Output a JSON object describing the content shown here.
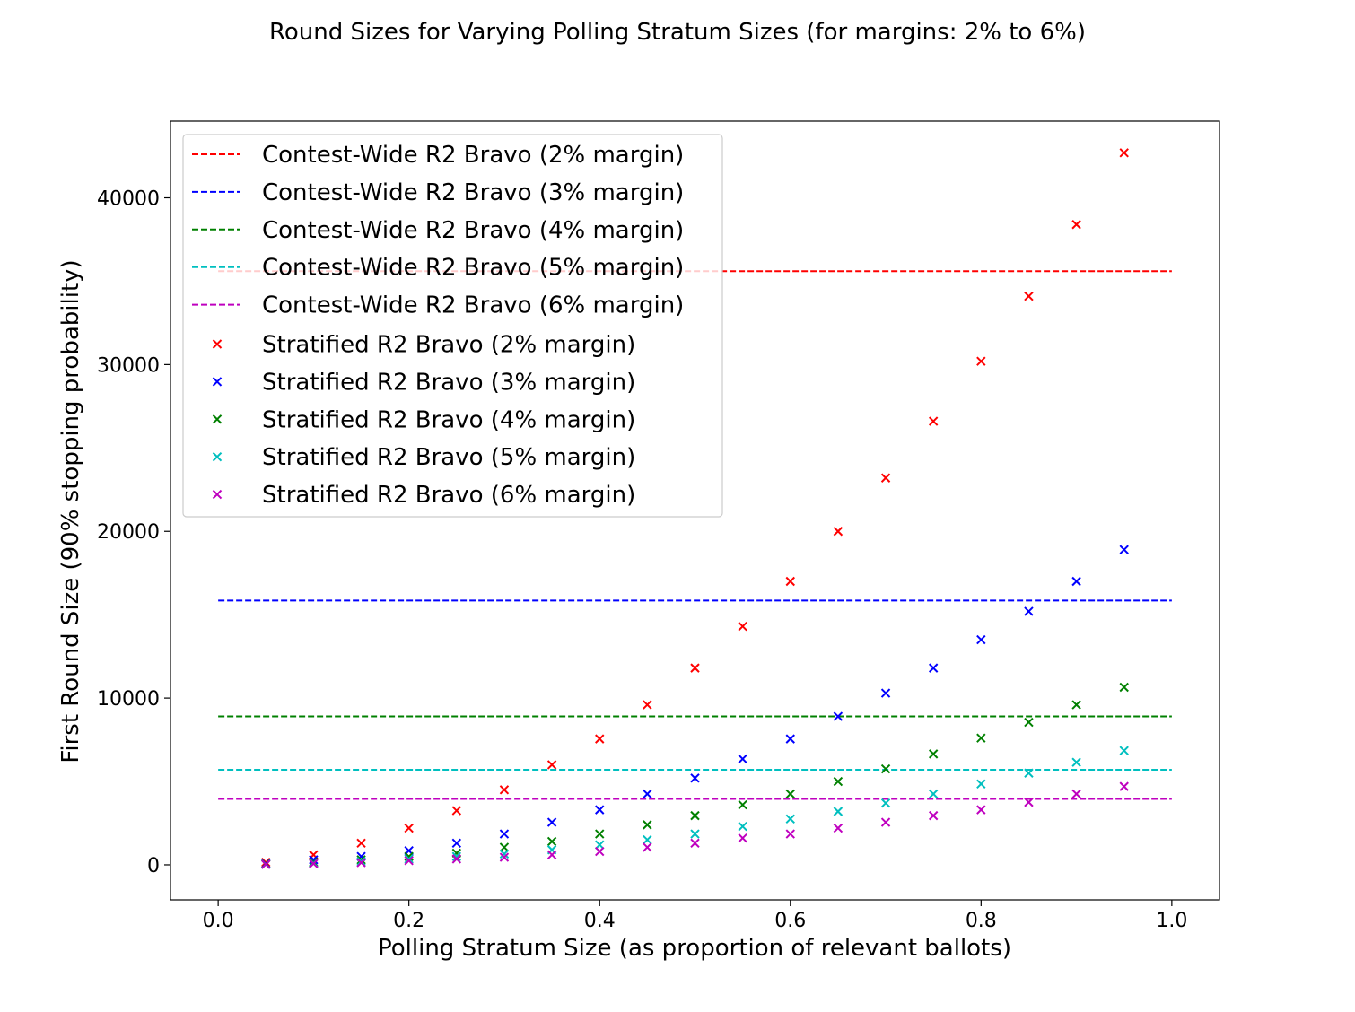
{
  "chart_data": {
    "type": "scatter",
    "title": "Round Sizes for Varying Polling Stratum Sizes (for margins: 2% to 6%)",
    "xlabel": "Polling Stratum Size (as proportion of relevant ballots)",
    "ylabel": "First Round Size (90% stopping probability)",
    "xlim": [
      -0.05,
      1.05
    ],
    "ylim": [
      -2100,
      44600
    ],
    "xticks": [
      0.0,
      0.2,
      0.4,
      0.6,
      0.8,
      1.0
    ],
    "xtick_labels": [
      "0.0",
      "0.2",
      "0.4",
      "0.6",
      "0.8",
      "1.0"
    ],
    "yticks": [
      0,
      10000,
      20000,
      30000,
      40000
    ],
    "ytick_labels": [
      "0",
      "10000",
      "20000",
      "30000",
      "40000"
    ],
    "grid": false,
    "legend_position": "top-left",
    "line_x_range": [
      0.0,
      1.0
    ],
    "lines": [
      {
        "name": "Contest-Wide R2 Bravo (2% margin)",
        "color": "#ff0000",
        "y": 35600
      },
      {
        "name": "Contest-Wide R2 Bravo (3% margin)",
        "color": "#0000ff",
        "y": 15850
      },
      {
        "name": "Contest-Wide R2 Bravo (4% margin)",
        "color": "#008000",
        "y": 8900
      },
      {
        "name": "Contest-Wide R2 Bravo (5% margin)",
        "color": "#00bfbf",
        "y": 5700
      },
      {
        "name": "Contest-Wide R2 Bravo (6% margin)",
        "color": "#bf00bf",
        "y": 3950
      }
    ],
    "x": [
      0.05,
      0.1,
      0.15,
      0.2,
      0.25,
      0.3,
      0.35,
      0.4,
      0.45,
      0.5,
      0.55,
      0.6,
      0.65,
      0.7,
      0.75,
      0.8,
      0.85,
      0.9,
      0.95
    ],
    "series": [
      {
        "name": "Stratified R2 Bravo (2% margin)",
        "color": "#ff0000",
        "values": [
          150,
          600,
          1300,
          2200,
          3250,
          4500,
          6000,
          7550,
          9600,
          11800,
          14300,
          17000,
          20000,
          23200,
          26600,
          30200,
          34100,
          38400,
          42700
        ]
      },
      {
        "name": "Stratified R2 Bravo (3% margin)",
        "color": "#0000ff",
        "values": [
          70,
          300,
          500,
          850,
          1300,
          1850,
          2550,
          3300,
          4250,
          5200,
          6350,
          7550,
          8900,
          10300,
          11800,
          13500,
          15200,
          17000,
          18900
        ]
      },
      {
        "name": "Stratified R2 Bravo (4% margin)",
        "color": "#008000",
        "values": [
          40,
          150,
          300,
          500,
          700,
          1050,
          1400,
          1850,
          2400,
          2950,
          3600,
          4250,
          5000,
          5750,
          6650,
          7600,
          8550,
          9600,
          10650
        ]
      },
      {
        "name": "Stratified R2 Bravo (5% margin)",
        "color": "#00bfbf",
        "values": [
          30,
          100,
          200,
          350,
          500,
          650,
          900,
          1200,
          1500,
          1850,
          2300,
          2750,
          3200,
          3700,
          4250,
          4850,
          5500,
          6150,
          6850
        ]
      },
      {
        "name": "Stratified R2 Bravo (6% margin)",
        "color": "#bf00bf",
        "values": [
          20,
          70,
          130,
          250,
          350,
          450,
          600,
          800,
          1050,
          1300,
          1600,
          1850,
          2200,
          2550,
          2950,
          3300,
          3750,
          4250,
          4700
        ]
      }
    ]
  }
}
